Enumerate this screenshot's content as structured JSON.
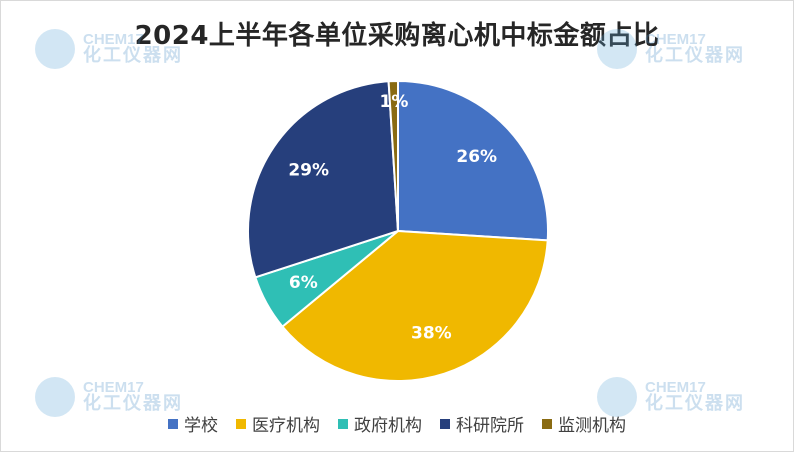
{
  "chart_data": {
    "type": "pie",
    "title": "2024上半年各单位采购离心机中标金额占比",
    "categories": [
      "学校",
      "医疗机构",
      "政府机构",
      "科研院所",
      "监测机构"
    ],
    "values": [
      26,
      38,
      6,
      29,
      1
    ],
    "labels": [
      "26%",
      "38%",
      "6%",
      "29%",
      "1%"
    ],
    "colors": [
      "#4472c4",
      "#f0b800",
      "#2fbfb5",
      "#263f7c",
      "#8a6b12"
    ],
    "legend_position": "bottom",
    "start_angle_deg": 0,
    "direction": "clockwise"
  },
  "watermark": {
    "brand": "CHEM17",
    "name": "化工仪器网"
  }
}
